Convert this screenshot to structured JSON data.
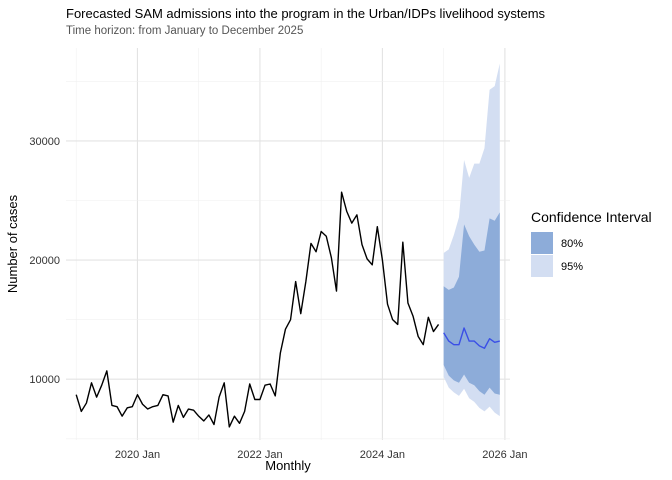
{
  "title": "Forecasted SAM admissions into the program in the Urban/IDPs livelihood systems",
  "subtitle": "Time horizon: from January to December 2025",
  "chart_data": {
    "type": "line",
    "xlabel": "Monthly",
    "ylabel": "Number of cases",
    "xlim": [
      "2018-11",
      "2026-02"
    ],
    "ylim": [
      4900,
      37800
    ],
    "x_ticks": [
      {
        "value": "2020-01",
        "label": "2020 Jan"
      },
      {
        "value": "2022-01",
        "label": "2022 Jan"
      },
      {
        "value": "2024-01",
        "label": "2024 Jan"
      },
      {
        "value": "2026-01",
        "label": "2026 Jan"
      }
    ],
    "y_ticks": [
      {
        "value": 10000,
        "label": "10000"
      },
      {
        "value": 20000,
        "label": "20000"
      },
      {
        "value": 30000,
        "label": "30000"
      }
    ],
    "grid": true,
    "legend": {
      "title": "Confidence Interval",
      "position": "right",
      "items": [
        {
          "label": "80%",
          "color": "#8DACD9"
        },
        {
          "label": "95%",
          "color": "#D3DEF2"
        }
      ]
    },
    "colors": {
      "history": "#000000",
      "forecast": "#3A4FE6",
      "ci80": "#8DACD9",
      "ci95": "#D3DEF2"
    },
    "history": {
      "start": "2019-01",
      "values": [
        8700,
        7300,
        8000,
        9700,
        8500,
        9500,
        10700,
        7800,
        7700,
        6900,
        7600,
        7700,
        8700,
        7900,
        7500,
        7700,
        7800,
        8700,
        8600,
        6400,
        7800,
        6800,
        7500,
        7400,
        6900,
        6500,
        7000,
        6200,
        8500,
        9700,
        6000,
        6900,
        6300,
        7300,
        9600,
        8300,
        8300,
        9500,
        9600,
        8600,
        12200,
        14200,
        15000,
        18200,
        15500,
        18200,
        21400,
        20700,
        22400,
        22000,
        20200,
        17400,
        25700,
        24100,
        23100,
        23800,
        21300,
        20100,
        19600,
        22800,
        20000,
        16300,
        15000,
        14600,
        21500,
        16400,
        15300,
        13600,
        12900,
        15200,
        14000,
        14600
      ]
    },
    "forecast": {
      "start": "2025-01",
      "mean": [
        13900,
        13200,
        12900,
        12900,
        14300,
        13200,
        13200,
        12800,
        12600,
        13400,
        13100,
        13200
      ],
      "lo80": [
        11200,
        10300,
        9900,
        9700,
        10400,
        9700,
        9500,
        9000,
        8700,
        9300,
        8800,
        8700
      ],
      "hi80": [
        17800,
        17500,
        17700,
        18600,
        23000,
        22000,
        21300,
        20700,
        20800,
        23500,
        23300,
        24000
      ],
      "lo95": [
        10200,
        9300,
        8900,
        8600,
        9200,
        8400,
        8100,
        7600,
        7300,
        7700,
        7200,
        6900
      ],
      "hi95": [
        20600,
        20900,
        22100,
        23600,
        28400,
        26900,
        28100,
        28100,
        29400,
        34300,
        34600,
        36500
      ]
    }
  }
}
